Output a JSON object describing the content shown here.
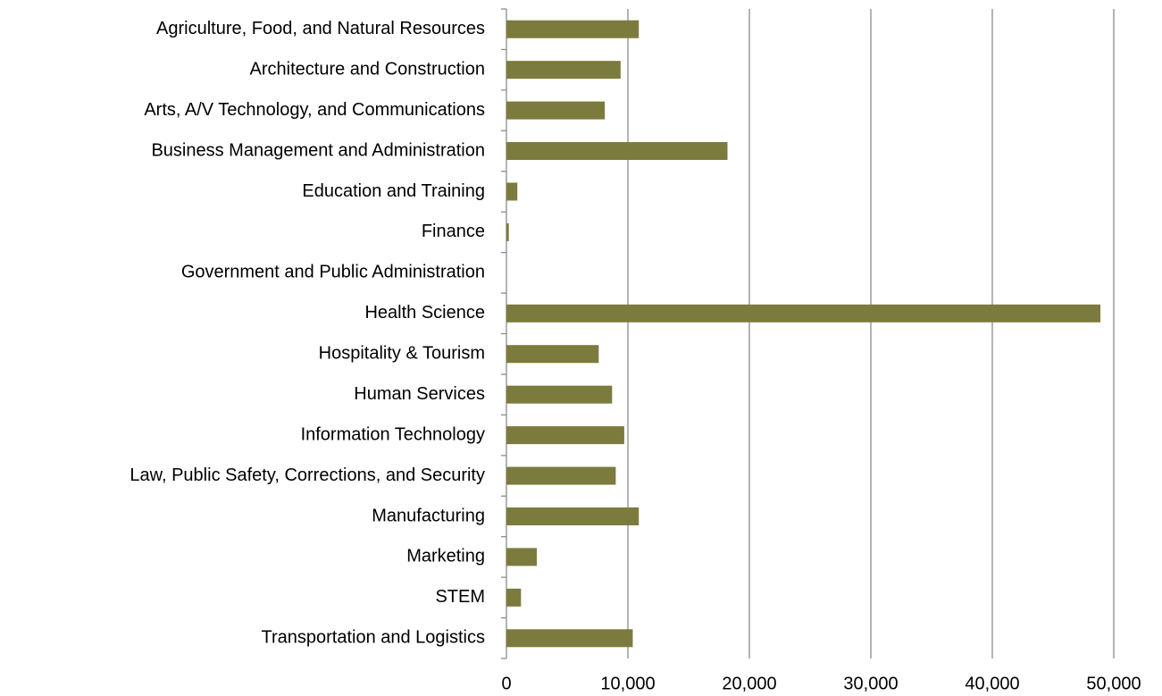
{
  "chart_data": {
    "type": "bar",
    "orientation": "horizontal",
    "categories": [
      "Agriculture, Food, and Natural  Resources",
      "Architecture and Construction",
      "Arts, A/V Technology, and Communications",
      "Business Management and Administration",
      "Education and Training",
      "Finance",
      "Government and Public Administration",
      "Health Science",
      "Hospitality & Tourism",
      "Human Services",
      "Information Technology",
      "Law, Public Safety, Corrections, and Security",
      "Manufacturing",
      "Marketing",
      "STEM",
      "Transportation and Logistics"
    ],
    "values": [
      10900,
      9400,
      8100,
      18200,
      900,
      200,
      0,
      48900,
      7600,
      8700,
      9700,
      9000,
      10900,
      2500,
      1200,
      10400
    ],
    "color": "#7b7b3d",
    "xlim": [
      0,
      50000
    ],
    "xticks": [
      0,
      {
        "value": 10000,
        "label": "10,000"
      },
      {
        "value": 20000,
        "label": "20,000"
      },
      {
        "value": 30000,
        "label": "30,000"
      },
      {
        "value": 40000,
        "label": "40,000"
      },
      {
        "value": 50000,
        "label": "50,000"
      }
    ],
    "grid": true
  }
}
